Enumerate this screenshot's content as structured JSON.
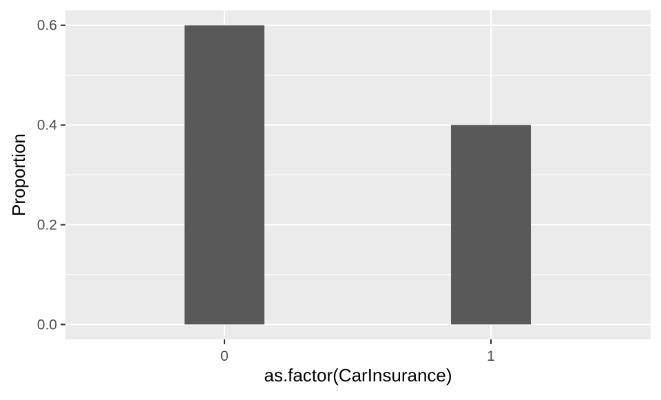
{
  "chart_data": {
    "type": "bar",
    "title": "",
    "xlabel": "as.factor(CarInsurance)",
    "ylabel": "Proportion",
    "categories": [
      "0",
      "1"
    ],
    "values": [
      0.6,
      0.4
    ],
    "ylim": [
      -0.03,
      0.63
    ],
    "y_ticks": [
      0.0,
      0.2,
      0.4,
      0.6
    ],
    "y_tick_labels": [
      "0.0",
      "0.2",
      "0.4",
      "0.6"
    ],
    "y_minor_ticks": [
      0.1,
      0.3,
      0.5
    ],
    "grid": true,
    "legend": "none",
    "colors": {
      "panel_background": "#ebebeb",
      "grid_line": "#ffffff",
      "bar_fill": "#595959",
      "tick_mark": "#333333",
      "tick_label": "#4d4d4d",
      "axis_title": "#000000"
    }
  }
}
